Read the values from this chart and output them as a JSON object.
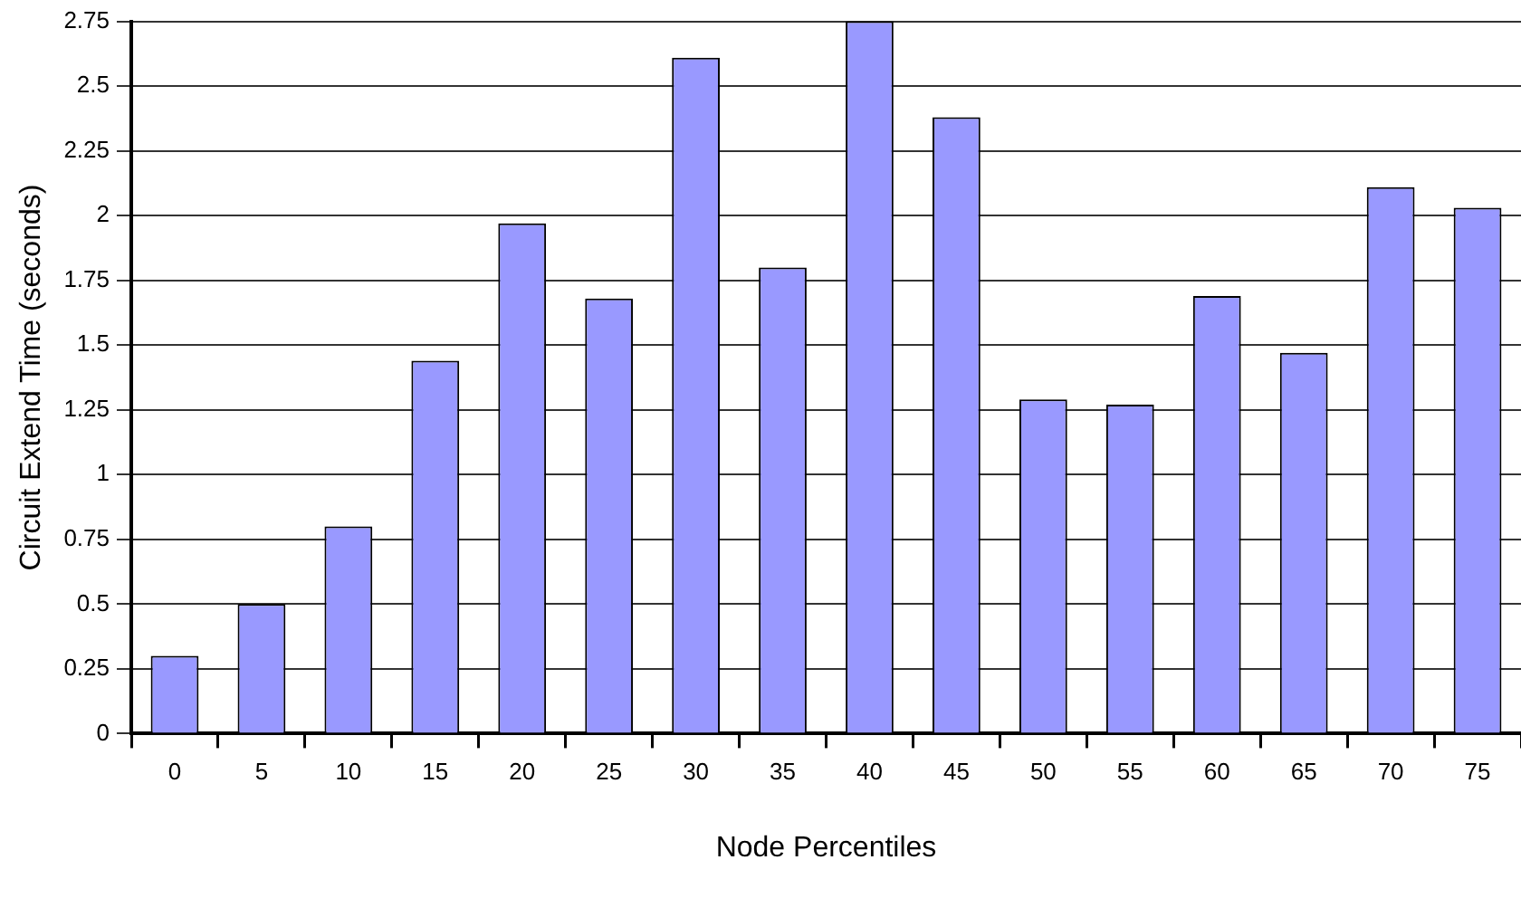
{
  "chart_data": {
    "type": "bar",
    "xlabel": "Node Percentiles",
    "ylabel": "Circuit Extend Time (seconds)",
    "categories": [
      "0",
      "5",
      "10",
      "15",
      "20",
      "25",
      "30",
      "35",
      "40",
      "45",
      "50",
      "55",
      "60",
      "65",
      "70",
      "75"
    ],
    "values": [
      0.3,
      0.5,
      0.8,
      1.44,
      1.97,
      1.68,
      2.61,
      1.8,
      2.75,
      2.38,
      1.29,
      1.27,
      1.69,
      1.47,
      2.11,
      2.03
    ],
    "color": "#9999ff",
    "ylim": [
      0,
      2.75
    ],
    "yticks": [
      0,
      0.25,
      0.5,
      0.75,
      1,
      1.25,
      1.5,
      1.75,
      2,
      2.25,
      2.5,
      2.75
    ],
    "grid": "y",
    "legend": false
  }
}
